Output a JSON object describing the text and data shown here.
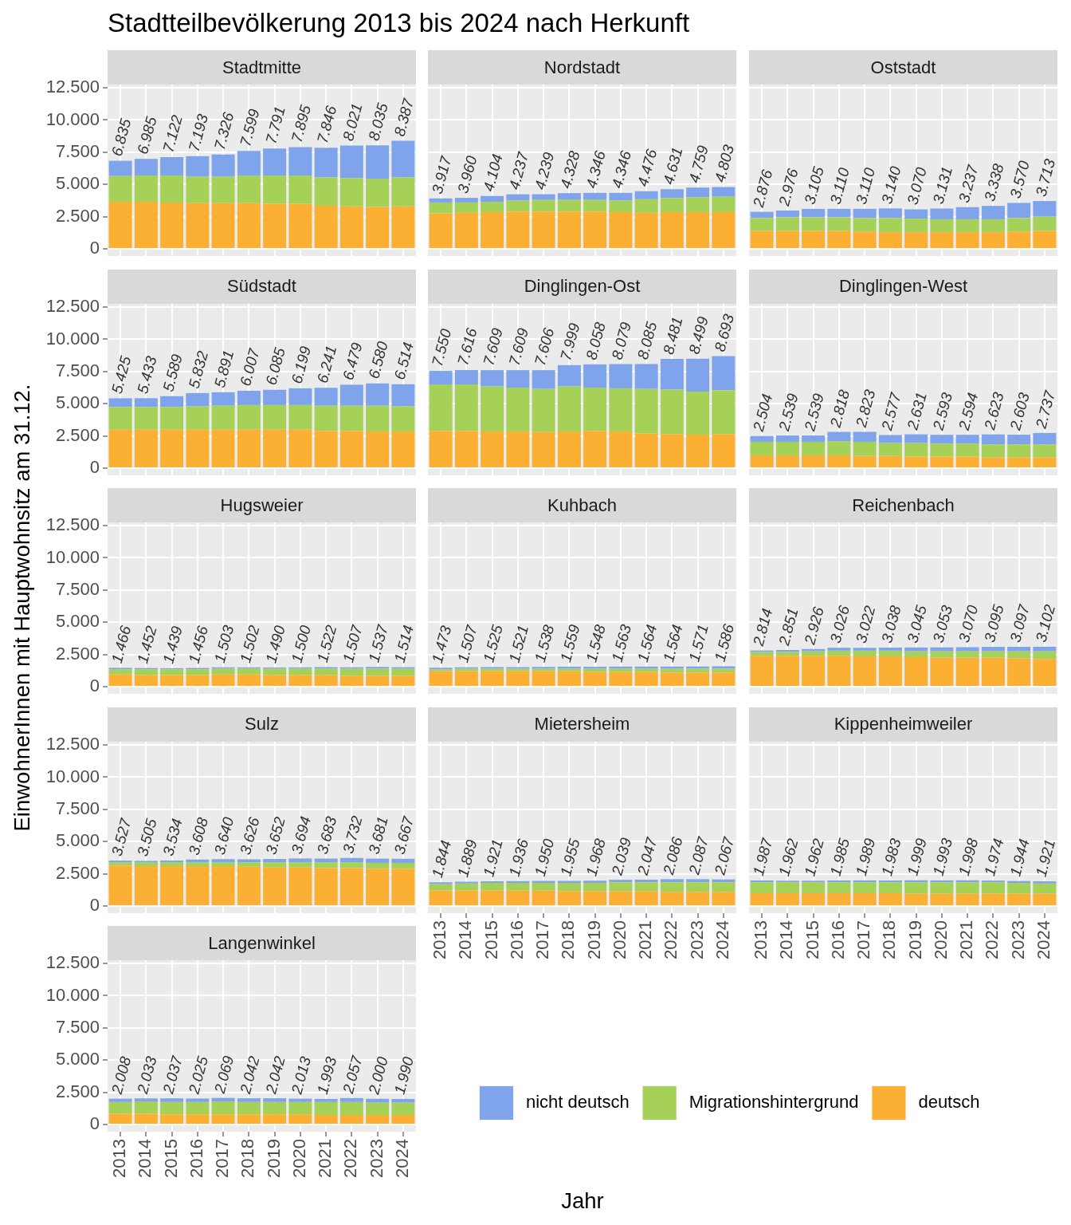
{
  "chart_data": [
    {
      "type": "other",
      "title": "Stadtteilbevölkerung 2013 bis 2024 nach Herkunft",
      "xlabel": "Jahr",
      "ylabel": "EinwohnerInnen mit Hauptwohnsitz am 31.12."
    },
    {
      "type": "bar",
      "title": "Stadtmitte",
      "categories": [
        "2013",
        "2014",
        "2015",
        "2016",
        "2017",
        "2018",
        "2019",
        "2020",
        "2021",
        "2022",
        "2023",
        "2024"
      ],
      "stacked": true,
      "series": [
        {
          "color": "#fbb034",
          "values": [
            3650,
            3650,
            3600,
            3550,
            3550,
            3550,
            3500,
            3500,
            3350,
            3300,
            3250,
            3300
          ]
        },
        {
          "color": "#a6d159",
          "values": [
            2000,
            2050,
            2100,
            2050,
            2050,
            2150,
            2200,
            2200,
            2200,
            2200,
            2200,
            2250
          ]
        },
        {
          "color": "#7fa4eb",
          "values": [
            1185,
            1285,
            1422,
            1593,
            1726,
            1899,
            2091,
            2195,
            2296,
            2521,
            2585,
            2837
          ]
        }
      ],
      "totals": [
        "6.835",
        "6.985",
        "7.122",
        "7.193",
        "7.326",
        "7.599",
        "7.791",
        "7.895",
        "7.846",
        "8.021",
        "8.035",
        "8.387"
      ],
      "ylim": [
        -550,
        12750
      ],
      "yticks": [
        0,
        {
          "value": 2500,
          "label": "2.500"
        },
        {
          "value": 5000,
          "label": "5.000"
        },
        {
          "value": 7500,
          "label": "7.500"
        },
        {
          "value": 10000,
          "label": "10.000"
        },
        {
          "value": 12500,
          "label": "12.500"
        }
      ],
      "grid": true,
      "tick_labels": "y"
    },
    {
      "type": "bar",
      "title": "Nordstadt",
      "categories": [
        "2013",
        "2014",
        "2015",
        "2016",
        "2017",
        "2018",
        "2019",
        "2020",
        "2021",
        "2022",
        "2023",
        "2024"
      ],
      "stacked": true,
      "series": [
        {
          "color": "#fbb034",
          "values": [
            2750,
            2800,
            2850,
            2900,
            2900,
            2900,
            2900,
            2850,
            2800,
            2850,
            2850,
            2850
          ]
        },
        {
          "color": "#a6d159",
          "values": [
            850,
            800,
            800,
            850,
            900,
            900,
            900,
            900,
            1050,
            1100,
            1150,
            1200
          ]
        },
        {
          "color": "#7fa4eb",
          "values": [
            317,
            360,
            454,
            487,
            439,
            528,
            546,
            596,
            626,
            681,
            759,
            753
          ]
        }
      ],
      "totals": [
        "3.917",
        "3.960",
        "4.104",
        "4.237",
        "4.239",
        "4.328",
        "4.346",
        "4.346",
        "4.476",
        "4.631",
        "4.759",
        "4.803"
      ],
      "ylim": [
        -550,
        12750
      ],
      "yticks": [
        0,
        2500,
        5000,
        7500,
        10000,
        12500
      ],
      "grid": true,
      "tick_labels": false
    },
    {
      "type": "bar",
      "title": "Oststadt",
      "categories": [
        "2013",
        "2014",
        "2015",
        "2016",
        "2017",
        "2018",
        "2019",
        "2020",
        "2021",
        "2022",
        "2023",
        "2024"
      ],
      "stacked": true,
      "series": [
        {
          "color": "#fbb034",
          "values": [
            1400,
            1400,
            1400,
            1400,
            1350,
            1300,
            1300,
            1300,
            1300,
            1300,
            1350,
            1400
          ]
        },
        {
          "color": "#a6d159",
          "values": [
            1000,
            1050,
            1050,
            1050,
            1050,
            1100,
            1050,
            1000,
            1000,
            1000,
            1050,
            1100
          ]
        },
        {
          "color": "#7fa4eb",
          "values": [
            476,
            526,
            655,
            660,
            710,
            740,
            720,
            831,
            937,
            1038,
            1170,
            1213
          ]
        }
      ],
      "totals": [
        "2.876",
        "2.976",
        "3.105",
        "3.110",
        "3.110",
        "3.140",
        "3.070",
        "3.131",
        "3.237",
        "3.338",
        "3.570",
        "3.713"
      ],
      "ylim": [
        -550,
        12750
      ],
      "yticks": [
        0,
        2500,
        5000,
        7500,
        10000,
        12500
      ],
      "grid": true,
      "tick_labels": false
    },
    {
      "type": "bar",
      "title": "Südstadt",
      "categories": [
        "2013",
        "2014",
        "2015",
        "2016",
        "2017",
        "2018",
        "2019",
        "2020",
        "2021",
        "2022",
        "2023",
        "2024"
      ],
      "stacked": true,
      "series": [
        {
          "color": "#fbb034",
          "values": [
            3000,
            3000,
            3000,
            3000,
            3000,
            3000,
            3000,
            3000,
            2900,
            2900,
            2850,
            2850
          ]
        },
        {
          "color": "#a6d159",
          "values": [
            1750,
            1750,
            1750,
            1800,
            1850,
            1900,
            1900,
            1900,
            1950,
            1950,
            2000,
            1950
          ]
        },
        {
          "color": "#7fa4eb",
          "values": [
            675,
            683,
            839,
            1032,
            1041,
            1107,
            1185,
            1299,
            1391,
            1629,
            1730,
            1714
          ]
        }
      ],
      "totals": [
        "5.425",
        "5.433",
        "5.589",
        "5.832",
        "5.891",
        "6.007",
        "6.085",
        "6.199",
        "6.241",
        "6.479",
        "6.580",
        "6.514"
      ],
      "ylim": [
        -550,
        12750
      ],
      "yticks": [
        0,
        {
          "value": 2500,
          "label": "2.500"
        },
        {
          "value": 5000,
          "label": "5.000"
        },
        {
          "value": 7500,
          "label": "7.500"
        },
        {
          "value": 10000,
          "label": "10.000"
        },
        {
          "value": 12500,
          "label": "12.500"
        }
      ],
      "grid": true,
      "tick_labels": "y"
    },
    {
      "type": "bar",
      "title": "Dinglingen-Ost",
      "categories": [
        "2013",
        "2014",
        "2015",
        "2016",
        "2017",
        "2018",
        "2019",
        "2020",
        "2021",
        "2022",
        "2023",
        "2024"
      ],
      "stacked": true,
      "series": [
        {
          "color": "#fbb034",
          "values": [
            2900,
            2900,
            2850,
            2850,
            2800,
            2850,
            2900,
            2850,
            2700,
            2650,
            2600,
            2650
          ]
        },
        {
          "color": "#a6d159",
          "values": [
            3600,
            3600,
            3500,
            3400,
            3350,
            3500,
            3350,
            3350,
            3450,
            3450,
            3350,
            3400
          ]
        },
        {
          "color": "#7fa4eb",
          "values": [
            1050,
            1116,
            1259,
            1359,
            1456,
            1649,
            1808,
            1879,
            1935,
            2381,
            2549,
            2643
          ]
        }
      ],
      "totals": [
        "7.550",
        "7.616",
        "7.609",
        "7.609",
        "7.606",
        "7.999",
        "8.058",
        "8.079",
        "8.085",
        "8.481",
        "8.499",
        "8.693"
      ],
      "ylim": [
        -550,
        12750
      ],
      "yticks": [
        0,
        2500,
        5000,
        7500,
        10000,
        12500
      ],
      "grid": true,
      "tick_labels": false
    },
    {
      "type": "bar",
      "title": "Dinglingen-West",
      "categories": [
        "2013",
        "2014",
        "2015",
        "2016",
        "2017",
        "2018",
        "2019",
        "2020",
        "2021",
        "2022",
        "2023",
        "2024"
      ],
      "stacked": true,
      "series": [
        {
          "color": "#fbb034",
          "values": [
            1000,
            1000,
            1000,
            1000,
            950,
            950,
            900,
            900,
            900,
            850,
            850,
            850
          ]
        },
        {
          "color": "#a6d159",
          "values": [
            1050,
            1050,
            1050,
            1100,
            1100,
            1000,
            1050,
            1000,
            1000,
            1000,
            1000,
            1000
          ]
        },
        {
          "color": "#7fa4eb",
          "values": [
            454,
            489,
            489,
            718,
            773,
            627,
            681,
            693,
            694,
            773,
            753,
            887
          ]
        }
      ],
      "totals": [
        "2.504",
        "2.539",
        "2.539",
        "2.818",
        "2.823",
        "2.577",
        "2.631",
        "2.593",
        "2.594",
        "2.623",
        "2.603",
        "2.737"
      ],
      "ylim": [
        -550,
        12750
      ],
      "yticks": [
        0,
        2500,
        5000,
        7500,
        10000,
        12500
      ],
      "grid": true,
      "tick_labels": false
    },
    {
      "type": "bar",
      "title": "Hugsweier",
      "categories": [
        "2013",
        "2014",
        "2015",
        "2016",
        "2017",
        "2018",
        "2019",
        "2020",
        "2021",
        "2022",
        "2023",
        "2024"
      ],
      "stacked": true,
      "series": [
        {
          "color": "#fbb034",
          "values": [
            950,
            900,
            900,
            900,
            950,
            950,
            900,
            900,
            900,
            850,
            850,
            850
          ]
        },
        {
          "color": "#a6d159",
          "values": [
            400,
            450,
            450,
            450,
            450,
            450,
            500,
            500,
            500,
            550,
            550,
            550
          ]
        },
        {
          "color": "#7fa4eb",
          "values": [
            116,
            102,
            89,
            106,
            103,
            102,
            90,
            100,
            122,
            107,
            137,
            114
          ]
        }
      ],
      "totals": [
        "1.466",
        "1.452",
        "1.439",
        "1.456",
        "1.503",
        "1.502",
        "1.490",
        "1.500",
        "1.522",
        "1.507",
        "1.537",
        "1.514"
      ],
      "ylim": [
        -550,
        12750
      ],
      "yticks": [
        0,
        {
          "value": 2500,
          "label": "2.500"
        },
        {
          "value": 5000,
          "label": "5.000"
        },
        {
          "value": 7500,
          "label": "7.500"
        },
        {
          "value": 10000,
          "label": "10.000"
        },
        {
          "value": 12500,
          "label": "12.500"
        }
      ],
      "grid": true,
      "tick_labels": "y"
    },
    {
      "type": "bar",
      "title": "Kuhbach",
      "categories": [
        "2013",
        "2014",
        "2015",
        "2016",
        "2017",
        "2018",
        "2019",
        "2020",
        "2021",
        "2022",
        "2023",
        "2024"
      ],
      "stacked": true,
      "series": [
        {
          "color": "#fbb034",
          "values": [
            1200,
            1200,
            1200,
            1200,
            1200,
            1200,
            1150,
            1150,
            1150,
            1100,
            1100,
            1100
          ]
        },
        {
          "color": "#a6d159",
          "values": [
            150,
            200,
            200,
            200,
            200,
            200,
            250,
            250,
            250,
            300,
            300,
            300
          ]
        },
        {
          "color": "#7fa4eb",
          "values": [
            123,
            107,
            125,
            121,
            138,
            159,
            148,
            163,
            164,
            164,
            171,
            186
          ]
        }
      ],
      "totals": [
        "1.473",
        "1.507",
        "1.525",
        "1.521",
        "1.538",
        "1.559",
        "1.548",
        "1.563",
        "1.564",
        "1.564",
        "1.571",
        "1.586"
      ],
      "ylim": [
        -550,
        12750
      ],
      "yticks": [
        0,
        2500,
        5000,
        7500,
        10000,
        12500
      ],
      "grid": true,
      "tick_labels": false
    },
    {
      "type": "bar",
      "title": "Reichenbach",
      "categories": [
        "2013",
        "2014",
        "2015",
        "2016",
        "2017",
        "2018",
        "2019",
        "2020",
        "2021",
        "2022",
        "2023",
        "2024"
      ],
      "stacked": true,
      "series": [
        {
          "color": "#fbb034",
          "values": [
            2400,
            2400,
            2400,
            2400,
            2350,
            2350,
            2300,
            2250,
            2250,
            2250,
            2200,
            2150
          ]
        },
        {
          "color": "#a6d159",
          "values": [
            300,
            300,
            350,
            400,
            450,
            450,
            450,
            500,
            500,
            500,
            550,
            600
          ]
        },
        {
          "color": "#7fa4eb",
          "values": [
            114,
            151,
            176,
            226,
            222,
            238,
            295,
            303,
            320,
            345,
            347,
            352
          ]
        }
      ],
      "totals": [
        "2.814",
        "2.851",
        "2.926",
        "3.026",
        "3.022",
        "3.038",
        "3.045",
        "3.053",
        "3.070",
        "3.095",
        "3.097",
        "3.102"
      ],
      "ylim": [
        -550,
        12750
      ],
      "yticks": [
        0,
        2500,
        5000,
        7500,
        10000,
        12500
      ],
      "grid": true,
      "tick_labels": false
    },
    {
      "type": "bar",
      "title": "Sulz",
      "categories": [
        "2013",
        "2014",
        "2015",
        "2016",
        "2017",
        "2018",
        "2019",
        "2020",
        "2021",
        "2022",
        "2023",
        "2024"
      ],
      "stacked": true,
      "series": [
        {
          "color": "#fbb034",
          "values": [
            3150,
            3100,
            3100,
            3100,
            3100,
            3050,
            3000,
            3000,
            2950,
            2950,
            2900,
            2900
          ]
        },
        {
          "color": "#a6d159",
          "values": [
            250,
            300,
            300,
            300,
            300,
            350,
            400,
            400,
            450,
            450,
            450,
            450
          ]
        },
        {
          "color": "#7fa4eb",
          "values": [
            127,
            105,
            134,
            208,
            240,
            226,
            252,
            294,
            283,
            332,
            331,
            317
          ]
        }
      ],
      "totals": [
        "3.527",
        "3.505",
        "3.534",
        "3.608",
        "3.640",
        "3.626",
        "3.652",
        "3.694",
        "3.683",
        "3.732",
        "3.681",
        "3.667"
      ],
      "ylim": [
        -550,
        12750
      ],
      "yticks": [
        0,
        {
          "value": 2500,
          "label": "2.500"
        },
        {
          "value": 5000,
          "label": "5.000"
        },
        {
          "value": 7500,
          "label": "7.500"
        },
        {
          "value": 10000,
          "label": "10.000"
        },
        {
          "value": 12500,
          "label": "12.500"
        }
      ],
      "grid": true,
      "tick_labels": "y"
    },
    {
      "type": "bar",
      "title": "Mietersheim",
      "categories": [
        "2013",
        "2014",
        "2015",
        "2016",
        "2017",
        "2018",
        "2019",
        "2020",
        "2021",
        "2022",
        "2023",
        "2024"
      ],
      "stacked": true,
      "series": [
        {
          "color": "#fbb034",
          "values": [
            1200,
            1200,
            1200,
            1200,
            1200,
            1150,
            1150,
            1150,
            1150,
            1100,
            1100,
            1100
          ]
        },
        {
          "color": "#a6d159",
          "values": [
            500,
            550,
            600,
            600,
            600,
            650,
            650,
            700,
            700,
            750,
            750,
            750
          ]
        },
        {
          "color": "#7fa4eb",
          "values": [
            144,
            139,
            121,
            136,
            150,
            155,
            168,
            189,
            197,
            236,
            237,
            217
          ]
        }
      ],
      "totals": [
        "1.844",
        "1.889",
        "1.921",
        "1.936",
        "1.950",
        "1.955",
        "1.968",
        "2.039",
        "2.047",
        "2.086",
        "2.087",
        "2.067"
      ],
      "ylim": [
        -550,
        12750
      ],
      "yticks": [
        0,
        2500,
        5000,
        7500,
        10000,
        12500
      ],
      "grid": true,
      "tick_labels": "x"
    },
    {
      "type": "bar",
      "title": "Kippenheimweiler",
      "categories": [
        "2013",
        "2014",
        "2015",
        "2016",
        "2017",
        "2018",
        "2019",
        "2020",
        "2021",
        "2022",
        "2023",
        "2024"
      ],
      "stacked": true,
      "series": [
        {
          "color": "#fbb034",
          "values": [
            1000,
            1000,
            1000,
            1000,
            1000,
            1000,
            950,
            950,
            950,
            950,
            950,
            950
          ]
        },
        {
          "color": "#a6d159",
          "values": [
            850,
            850,
            850,
            850,
            850,
            850,
            900,
            900,
            900,
            900,
            850,
            800
          ]
        },
        {
          "color": "#7fa4eb",
          "values": [
            137,
            112,
            112,
            135,
            139,
            133,
            149,
            143,
            148,
            124,
            144,
            171
          ]
        }
      ],
      "totals": [
        "1.987",
        "1.962",
        "1.962",
        "1.985",
        "1.989",
        "1.983",
        "1.999",
        "1.993",
        "1.998",
        "1.974",
        "1.944",
        "1.921"
      ],
      "ylim": [
        -550,
        12750
      ],
      "yticks": [
        0,
        2500,
        5000,
        7500,
        10000,
        12500
      ],
      "grid": true,
      "tick_labels": "x"
    },
    {
      "type": "bar",
      "title": "Langenwinkel",
      "categories": [
        "2013",
        "2014",
        "2015",
        "2016",
        "2017",
        "2018",
        "2019",
        "2020",
        "2021",
        "2022",
        "2023",
        "2024"
      ],
      "stacked": true,
      "series": [
        {
          "name": "deutsch",
          "color": "#fbb034",
          "values": [
            850,
            850,
            800,
            800,
            800,
            800,
            800,
            800,
            750,
            750,
            750,
            750
          ]
        },
        {
          "name": "Migrationshintergrund",
          "color": "#a6d159",
          "values": [
            900,
            950,
            950,
            950,
            1000,
            950,
            950,
            950,
            1000,
            1000,
            950,
            950
          ]
        },
        {
          "name": "nicht deutsch",
          "color": "#7fa4eb",
          "values": [
            258,
            233,
            287,
            275,
            269,
            292,
            292,
            263,
            243,
            307,
            300,
            290
          ]
        }
      ],
      "totals": [
        "2.008",
        "2.033",
        "2.037",
        "2.025",
        "2.069",
        "2.042",
        "2.042",
        "2.013",
        "1.993",
        "2.057",
        "2.000",
        "1.990"
      ],
      "ylim": [
        -550,
        12750
      ],
      "yticks": [
        0,
        {
          "value": 2500,
          "label": "2.500"
        },
        {
          "value": 5000,
          "label": "5.000"
        },
        {
          "value": 7500,
          "label": "7.500"
        },
        {
          "value": 10000,
          "label": "10.000"
        },
        {
          "value": 12500,
          "label": "12.500"
        }
      ],
      "grid": true,
      "legend": "right"
    }
  ]
}
